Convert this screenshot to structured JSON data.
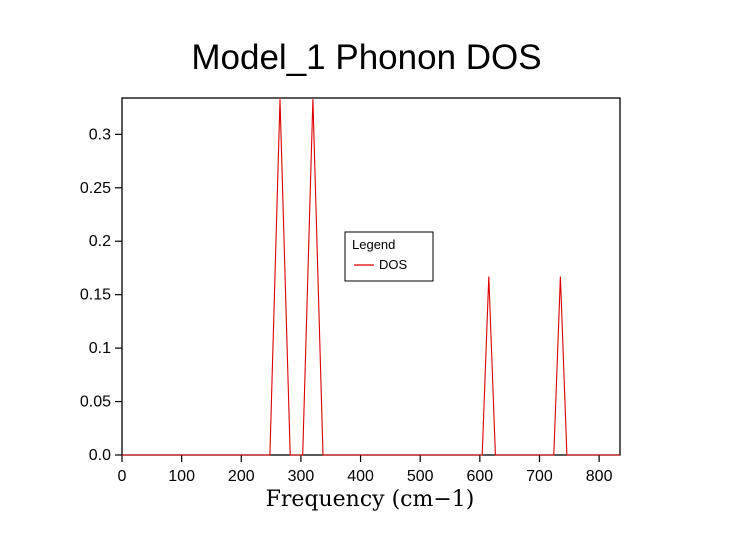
{
  "page": {
    "background": "#ffffff"
  },
  "chart_data": {
    "type": "line",
    "title": "Model_1 Phonon DOS",
    "xlabel": "Frequency (cm−1)",
    "ylabel": "",
    "xlim": [
      0,
      835
    ],
    "ylim": [
      0,
      0.334
    ],
    "grid": false,
    "line_color": "#dd0000",
    "xticks": {
      "values": [
        0,
        100,
        200,
        300,
        400,
        500,
        600,
        700,
        800
      ],
      "labels": [
        "0",
        "100",
        "200",
        "300",
        "400",
        "500",
        "600",
        "700",
        "800"
      ]
    },
    "yticks": {
      "values": [
        0,
        0.05,
        0.1,
        0.15,
        0.2,
        0.25,
        0.3
      ],
      "labels": [
        "0.0",
        "0.05",
        "0.1",
        "0.15",
        "0.2",
        "0.25",
        "0.3"
      ]
    },
    "legend": {
      "title": "Legend",
      "position": "center",
      "entries": [
        {
          "label": "DOS",
          "color": "#dd0000"
        }
      ]
    },
    "series": [
      {
        "name": "DOS",
        "color": "#dd0000",
        "points": [
          [
            0,
            0
          ],
          [
            248,
            0
          ],
          [
            265,
            0.333
          ],
          [
            282,
            0
          ],
          [
            303,
            0
          ],
          [
            320,
            0.333
          ],
          [
            337,
            0
          ],
          [
            604,
            0
          ],
          [
            615,
            0.167
          ],
          [
            626,
            0
          ],
          [
            724,
            0
          ],
          [
            735,
            0.167
          ],
          [
            746,
            0
          ],
          [
            835,
            0
          ]
        ]
      }
    ],
    "peaks": [
      {
        "frequency": 265,
        "dos": 0.333
      },
      {
        "frequency": 320,
        "dos": 0.333
      },
      {
        "frequency": 615,
        "dos": 0.167
      },
      {
        "frequency": 735,
        "dos": 0.167
      }
    ]
  }
}
